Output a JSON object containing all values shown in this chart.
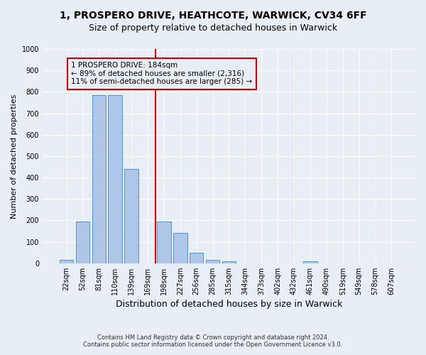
{
  "title_line1": "1, PROSPERO DRIVE, HEATHCOTE, WARWICK, CV34 6FF",
  "title_line2": "Size of property relative to detached houses in Warwick",
  "xlabel": "Distribution of detached houses by size in Warwick",
  "ylabel": "Number of detached properties",
  "footnote": "Contains HM Land Registry data © Crown copyright and database right 2024.\nContains public sector information licensed under the Open Government Licence v3.0.",
  "bar_labels": [
    "22sqm",
    "52sqm",
    "81sqm",
    "110sqm",
    "139sqm",
    "169sqm",
    "198sqm",
    "227sqm",
    "256sqm",
    "285sqm",
    "315sqm",
    "344sqm",
    "373sqm",
    "402sqm",
    "432sqm",
    "461sqm",
    "490sqm",
    "519sqm",
    "549sqm",
    "578sqm",
    "607sqm"
  ],
  "bar_values": [
    15,
    195,
    785,
    785,
    440,
    0,
    195,
    140,
    48,
    15,
    10,
    0,
    0,
    0,
    0,
    10,
    0,
    0,
    0,
    0,
    0
  ],
  "bar_color": "#aec6e8",
  "bar_edgecolor": "#5a8fc2",
  "vline_color": "#cc0000",
  "annotation_text": "1 PROSPERO DRIVE: 184sqm\n← 89% of detached houses are smaller (2,316)\n11% of semi-detached houses are larger (285) →",
  "annotation_box_color": "#cc0000",
  "ylim": [
    0,
    1000
  ],
  "yticks": [
    0,
    100,
    200,
    300,
    400,
    500,
    600,
    700,
    800,
    900,
    1000
  ],
  "background_color": "#e8eef5",
  "grid_color": "#ffffff",
  "title1_fontsize": 10,
  "title2_fontsize": 9,
  "xlabel_fontsize": 9,
  "ylabel_fontsize": 8,
  "tick_fontsize": 7,
  "annot_fontsize": 7.5,
  "footnote_fontsize": 6
}
